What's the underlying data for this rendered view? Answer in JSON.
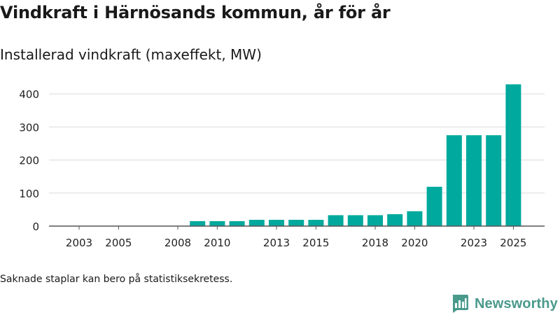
{
  "page": {
    "title": "Vindkraft i Härnösands kommun, år för år",
    "subtitle": "Installerad vindkraft (maxeffekt, MW)",
    "note": "Saknade staplar kan bero på statistiksekretess.",
    "brand": "Newsworthy"
  },
  "colors": {
    "bar": "#00a99d",
    "grid": "#d9d9d9",
    "axis": "#555555",
    "brand": "#4a9a8c"
  },
  "chart_data": {
    "type": "bar",
    "title": "Installerad vindkraft (maxeffekt, MW)",
    "xlabel": "",
    "ylabel": "",
    "ylim": [
      0,
      430
    ],
    "yticks": [
      0,
      100,
      200,
      300,
      400
    ],
    "xtick_labels": [
      "2003",
      "2005",
      "2008",
      "2010",
      "2013",
      "2015",
      "2018",
      "2020",
      "2023",
      "2025"
    ],
    "categories": [
      "2003",
      "2004",
      "2005",
      "2006",
      "2007",
      "2008",
      "2009",
      "2010",
      "2011",
      "2012",
      "2013",
      "2014",
      "2015",
      "2016",
      "2017",
      "2018",
      "2019",
      "2020",
      "2021",
      "2022",
      "2023",
      "2024",
      "2025"
    ],
    "values": [
      null,
      null,
      null,
      null,
      null,
      null,
      15,
      15,
      15,
      19,
      19,
      19,
      19,
      33,
      33,
      33,
      36,
      45,
      119,
      275,
      275,
      275,
      429
    ],
    "grid": true
  }
}
